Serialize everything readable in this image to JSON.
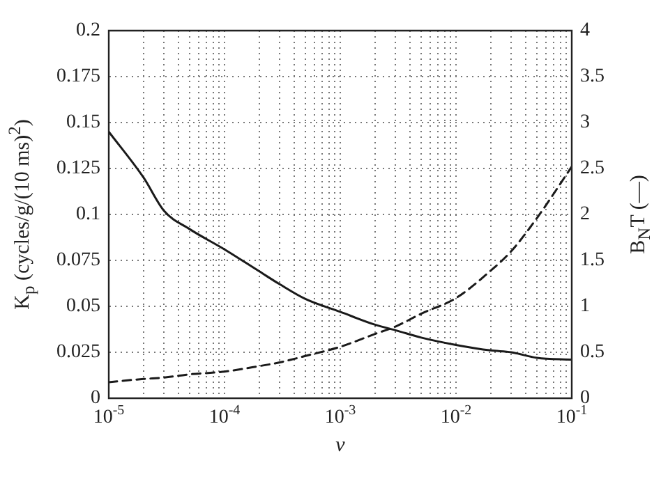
{
  "chart_data": {
    "type": "line",
    "xlabel": "ν",
    "ylabel": "K$_{p}$ (cycles/g/(10 ms)$^{2}$)",
    "y2label": "B$_{N}$T (—)",
    "log": "x",
    "grid": true,
    "legend": false,
    "marker": "none",
    "xlim": [
      1e-05,
      0.1
    ],
    "xticks": [
      {
        "value": 1e-05,
        "label": "10$^{-5}$"
      },
      {
        "value": 2e-05,
        "label": null
      },
      {
        "value": 3e-05,
        "label": null
      },
      {
        "value": 4e-05,
        "label": null
      },
      {
        "value": 5e-05,
        "label": null
      },
      {
        "value": 6e-05,
        "label": null
      },
      {
        "value": 7e-05,
        "label": null
      },
      {
        "value": 8e-05,
        "label": null
      },
      {
        "value": 9e-05,
        "label": null
      },
      {
        "value": 0.0001,
        "label": "10$^{-4}$"
      },
      {
        "value": 0.0002,
        "label": null
      },
      {
        "value": 0.0003,
        "label": null
      },
      {
        "value": 0.0004,
        "label": null
      },
      {
        "value": 0.0005,
        "label": null
      },
      {
        "value": 0.0006,
        "label": null
      },
      {
        "value": 0.0007,
        "label": null
      },
      {
        "value": 0.0008,
        "label": null
      },
      {
        "value": 0.0009,
        "label": null
      },
      {
        "value": 0.001,
        "label": "10$^{-3}$"
      },
      {
        "value": 0.002,
        "label": null
      },
      {
        "value": 0.003,
        "label": null
      },
      {
        "value": 0.004,
        "label": null
      },
      {
        "value": 0.005,
        "label": null
      },
      {
        "value": 0.006,
        "label": null
      },
      {
        "value": 0.007,
        "label": null
      },
      {
        "value": 0.008,
        "label": null
      },
      {
        "value": 0.009,
        "label": null
      },
      {
        "value": 0.01,
        "label": "10$^{-2}$"
      },
      {
        "value": 0.02,
        "label": null
      },
      {
        "value": 0.03,
        "label": null
      },
      {
        "value": 0.04,
        "label": null
      },
      {
        "value": 0.05,
        "label": null
      },
      {
        "value": 0.06,
        "label": null
      },
      {
        "value": 0.07,
        "label": null
      },
      {
        "value": 0.08,
        "label": null
      },
      {
        "value": 0.09,
        "label": null
      },
      {
        "value": 0.1,
        "label": "10$^{-1}$"
      }
    ],
    "ylim": [
      0,
      0.2
    ],
    "yticks": [
      0,
      0.025,
      0.05,
      0.075,
      0.1,
      0.125,
      0.15,
      0.175,
      0.2
    ],
    "y2lim": [
      0,
      4
    ],
    "y2ticks": [
      0,
      0.5,
      1,
      1.5,
      2,
      2.5,
      3,
      3.5,
      4
    ],
    "series": [
      {
        "color": "#1a1a1a",
        "line_style": "solid",
        "x": [
          1e-05,
          2e-05,
          3e-05,
          5e-05,
          0.0001,
          0.0002,
          0.0003,
          0.0005,
          0.001,
          0.002,
          0.003,
          0.005,
          0.01,
          0.02,
          0.03,
          0.05,
          0.1
        ],
        "values": [
          0.145,
          0.12,
          0.102,
          0.092,
          0.081,
          0.069,
          0.062,
          0.054,
          0.047,
          0.04,
          0.037,
          0.033,
          0.029,
          0.026,
          0.025,
          0.022,
          0.021
        ]
      },
      {
        "color": "#1a1a1a",
        "line_style": "dashed",
        "axis": "y2",
        "x": [
          1e-05,
          2e-05,
          3e-05,
          5e-05,
          0.0001,
          0.0002,
          0.0003,
          0.0005,
          0.001,
          0.002,
          0.003,
          0.005,
          0.01,
          0.02,
          0.03,
          0.05,
          0.1
        ],
        "values": [
          0.175,
          0.21,
          0.225,
          0.26,
          0.29,
          0.35,
          0.39,
          0.46,
          0.56,
          0.7,
          0.78,
          0.92,
          1.09,
          1.39,
          1.6,
          1.96,
          2.52
        ]
      }
    ]
  }
}
